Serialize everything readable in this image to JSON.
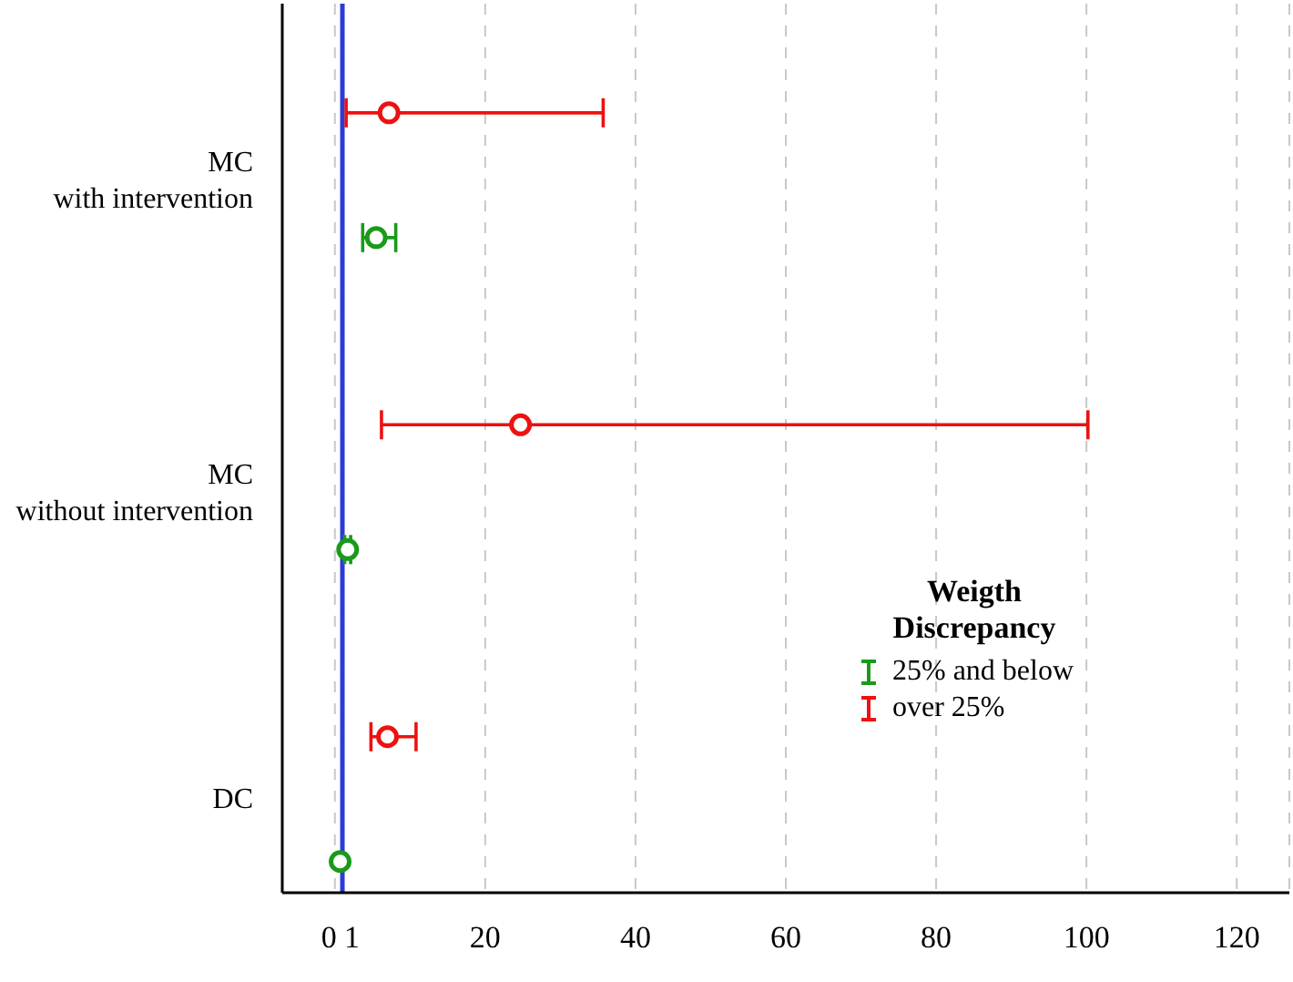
{
  "chart_data": {
    "type": "scatter",
    "orientation": "horizontal",
    "categories": [
      "MC with intervention",
      "MC without intervention",
      "DC"
    ],
    "series": [
      {
        "name": "25% and below",
        "color": "#1a9a1a",
        "values": [
          5.5,
          1.7,
          0.7
        ],
        "errors": [
          [
            3.7,
            8.1
          ],
          [
            1.3,
            2.1
          ],
          null
        ]
      },
      {
        "name": "over 25%",
        "color": "#ee1111",
        "values": [
          7.2,
          24.7,
          7.0
        ],
        "errors": [
          [
            1.5,
            35.7
          ],
          [
            6.2,
            100.2
          ],
          [
            4.8,
            10.8
          ]
        ]
      }
    ],
    "xlim": [
      -7,
      127
    ],
    "xticks": [
      0,
      1,
      20,
      40,
      60,
      80,
      100,
      120
    ],
    "ref_lines": [
      {
        "axis": "x",
        "value": 1,
        "color": "#2b3bd6"
      }
    ],
    "legend_title": "Weigth Discrepancy",
    "legend": "bottom right",
    "grid": "x",
    "marker": "circle"
  }
}
